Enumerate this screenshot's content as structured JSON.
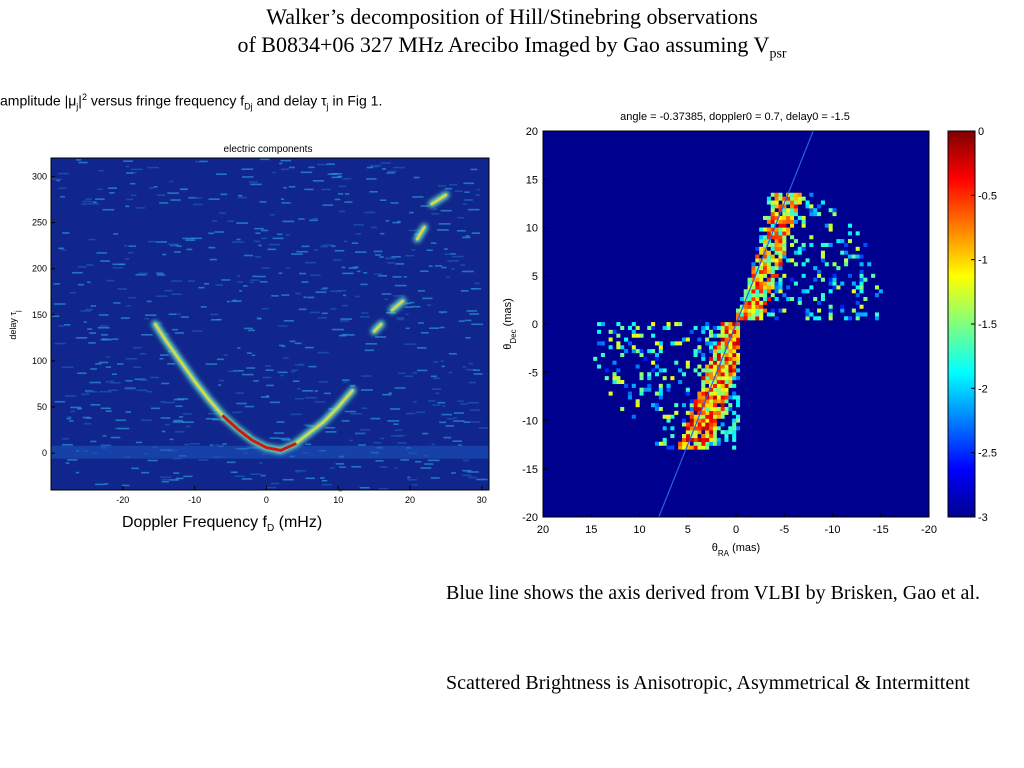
{
  "header": {
    "line1": "Walker’s decomposition of Hill/Stinebring observations",
    "line2_main": "of B0834+06 327 MHz Arecibo   Imaged by Gao assuming V",
    "line2_sub": "psr"
  },
  "left_caption": {
    "pre": "amplitude |μ",
    "sub1": "j",
    "mid1": "|",
    "sup": "2",
    "mid2": " versus fringe frequency f",
    "sub2": "Dj",
    "mid3": " and delay τ",
    "sub3": "j",
    "post": " in Fig 1."
  },
  "doppler_caption": {
    "pre": "Doppler Frequency f",
    "sub": "D",
    "post": " (mHz)"
  },
  "notes": {
    "line1": "Blue line shows the axis derived from VLBI  by Brisken, Gao et al.",
    "line2": "Scattered Brightness is Anisotropic, Asymmetrical  & Intermittent"
  },
  "chart_data": [
    {
      "type": "heatmap",
      "title": "electric components",
      "xlabel": "",
      "ylabel": "delay τj",
      "xlim": [
        -30,
        31
      ],
      "ylim": [
        -40,
        320
      ],
      "xticks": [
        -20,
        -10,
        0,
        10,
        20,
        30
      ],
      "yticks": [
        0,
        50,
        100,
        150,
        200,
        250,
        300
      ],
      "colors": {
        "background": "#10268c",
        "noise": "#2a8fd6",
        "mid": "#6ee0c0",
        "high": "#e8d83a",
        "peak": "#cc1a0a"
      },
      "arc_segments": [
        {
          "name": "main-arc",
          "x": [
            -15.5,
            -14,
            -12,
            -10,
            -8,
            -6,
            -4,
            -2,
            0,
            2,
            4,
            6,
            8,
            10,
            12
          ],
          "y": [
            140,
            122,
            100,
            78,
            58,
            40,
            26,
            14,
            6,
            3,
            10,
            22,
            34,
            50,
            68
          ]
        },
        {
          "name": "arclet-1",
          "x": [
            15,
            16
          ],
          "y": [
            132,
            140
          ]
        },
        {
          "name": "arclet-2",
          "x": [
            17.5,
            19
          ],
          "y": [
            155,
            165
          ]
        },
        {
          "name": "arclet-3",
          "x": [
            21,
            22
          ],
          "y": [
            232,
            245
          ]
        },
        {
          "name": "arclet-4",
          "x": [
            23,
            25
          ],
          "y": [
            270,
            280
          ]
        }
      ]
    },
    {
      "type": "heatmap",
      "title": "angle = -0.37385, doppler0 = 0.7, delay0 = -1.5",
      "xlabel": "θRA (mas)",
      "ylabel": "θDec (mas)",
      "xlim": [
        20,
        -20
      ],
      "ylim": [
        -20,
        20
      ],
      "xticks": [
        20,
        15,
        10,
        5,
        0,
        -5,
        -10,
        -15,
        -20
      ],
      "yticks": [
        20,
        15,
        10,
        5,
        0,
        -5,
        -10,
        -15,
        -20
      ],
      "colorbar": {
        "ticks": [
          "0",
          "-0.5",
          "-1",
          "-1.5",
          "-2",
          "-2.5",
          "-3"
        ],
        "range": [
          -3,
          0
        ]
      },
      "axis_line": {
        "from": [
          8,
          -20
        ],
        "to": [
          -8,
          20
        ]
      },
      "bright_regions": [
        {
          "name": "lower-left-wedge",
          "x_range": [
            15,
            0
          ],
          "y_range": [
            -13,
            0
          ]
        },
        {
          "name": "upper-right-wedge",
          "x_range": [
            0,
            -15.5
          ],
          "y_range": [
            0,
            13.5
          ]
        }
      ]
    }
  ]
}
